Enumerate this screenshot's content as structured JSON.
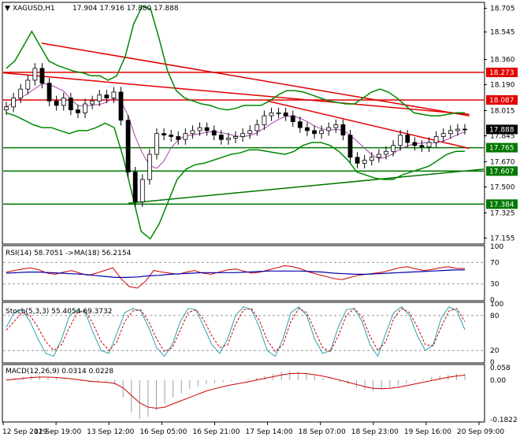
{
  "header": {
    "symbol": "XAGUSD,H1",
    "ohlc": "17.904 17.916 17.880 17.888"
  },
  "indicators": {
    "rsi_label": "RSI(14) 58.7051 ->MA(18) 56.2154",
    "stoch_label": "Stoch(5,3,3) 55.4054 69.3732",
    "macd_label": "MACD(12,26,9) 0.0314 0.0228"
  },
  "colors": {
    "up_candle": "#ffffff",
    "down_candle": "#000000",
    "resistance": "#e00000",
    "support": "#007700",
    "bollinger": "#008800",
    "rsi_line": "#cc0000",
    "rsi_ma": "#0000aa",
    "stoch_main": "#2aa0b0",
    "stoch_signal": "#cc0000",
    "macd_hist": "#a0a0a0",
    "macd_signal": "#cc0000"
  },
  "chart_data": [
    {
      "type": "candlestick",
      "title": "XAGUSD,H1",
      "y_ticks": [
        "18.705",
        "18.545",
        "18.360",
        "18.190",
        "18.015",
        "17.845",
        "17.670",
        "17.500",
        "17.325",
        "17.155"
      ],
      "y_tick_values": [
        18.705,
        18.545,
        18.36,
        18.19,
        18.015,
        17.845,
        17.67,
        17.5,
        17.325,
        17.155
      ],
      "ylim": [
        17.12,
        18.74
      ],
      "x_ticks": [
        "12 Sep 2019",
        "12 Sep 19:00",
        "13 Sep 12:00",
        "16 Sep 05:00",
        "16 Sep 21:00",
        "17 Sep 14:00",
        "18 Sep 07:00",
        "18 Sep 23:00",
        "19 Sep 16:00",
        "20 Sep 09:00"
      ],
      "current_price": "17.888",
      "horizontal_levels": [
        {
          "value": 18.273,
          "label": "18.273",
          "color": "red"
        },
        {
          "value": 18.087,
          "label": "18.087",
          "color": "red"
        },
        {
          "value": 17.765,
          "label": "17.765",
          "color": "green"
        },
        {
          "value": 17.607,
          "label": "17.607",
          "color": "green"
        },
        {
          "value": 17.384,
          "label": "17.384",
          "color": "green"
        }
      ],
      "trend_lines": [
        {
          "color": "red",
          "from": [
            0.08,
            18.47
          ],
          "to": [
            0.97,
            17.98
          ]
        },
        {
          "color": "red",
          "from": [
            0.0,
            18.27
          ],
          "to": [
            0.97,
            17.99
          ]
        },
        {
          "color": "red",
          "from": [
            0.55,
            18.08
          ],
          "to": [
            0.97,
            17.76
          ]
        },
        {
          "color": "green",
          "from": [
            0.26,
            17.39
          ],
          "to": [
            1.0,
            17.62
          ]
        }
      ],
      "close": [
        18.04,
        18.1,
        18.16,
        18.22,
        18.3,
        18.2,
        18.08,
        18.05,
        18.1,
        18.02,
        18.0,
        18.06,
        18.08,
        18.12,
        18.1,
        18.14,
        17.95,
        17.6,
        17.4,
        17.55,
        17.72,
        17.86,
        17.85,
        17.84,
        17.82,
        17.86,
        17.88,
        17.9,
        17.88,
        17.85,
        17.82,
        17.83,
        17.84,
        17.86,
        17.88,
        17.92,
        17.98,
        18.0,
        18.0,
        17.98,
        17.94,
        17.9,
        17.88,
        17.86,
        17.88,
        17.9,
        17.92,
        17.85,
        17.7,
        17.66,
        17.68,
        17.7,
        17.72,
        17.74,
        17.78,
        17.85,
        17.8,
        17.78,
        17.77,
        17.8,
        17.84,
        17.86,
        17.88,
        17.89,
        17.888
      ],
      "bollinger_upper": [
        18.3,
        18.35,
        18.45,
        18.55,
        18.45,
        18.35,
        18.32,
        18.3,
        18.28,
        18.27,
        18.25,
        18.25,
        18.22,
        18.25,
        18.38,
        18.6,
        18.72,
        18.7,
        18.5,
        18.28,
        18.15,
        18.1,
        18.08,
        18.06,
        18.05,
        18.03,
        18.02,
        18.03,
        18.05,
        18.05,
        18.05,
        18.08,
        18.12,
        18.15,
        18.15,
        18.14,
        18.12,
        18.1,
        18.08,
        18.07,
        18.06,
        18.06,
        18.1,
        18.14,
        18.16,
        18.14,
        18.1,
        18.05,
        18.0,
        17.99,
        17.98,
        17.98,
        17.99,
        18.0,
        18.0
      ],
      "bollinger_lower": [
        18.0,
        17.98,
        17.95,
        17.92,
        17.9,
        17.9,
        17.88,
        17.86,
        17.88,
        17.88,
        17.9,
        17.93,
        17.9,
        17.7,
        17.45,
        17.2,
        17.15,
        17.25,
        17.4,
        17.55,
        17.62,
        17.65,
        17.66,
        17.68,
        17.7,
        17.72,
        17.73,
        17.75,
        17.75,
        17.74,
        17.73,
        17.72,
        17.74,
        17.78,
        17.8,
        17.8,
        17.78,
        17.74,
        17.68,
        17.6,
        17.58,
        17.56,
        17.55,
        17.55,
        17.58,
        17.6,
        17.62,
        17.64,
        17.68,
        17.72,
        17.74,
        17.74
      ]
    },
    {
      "type": "line",
      "title": "RSI(14)",
      "y_ticks": [
        "100",
        "70",
        "30",
        "0"
      ],
      "ylim": [
        0,
        100
      ],
      "series": [
        {
          "values": [
            52,
            55,
            58,
            60,
            56,
            50,
            48,
            52,
            55,
            50,
            46,
            50,
            55,
            60,
            40,
            25,
            22,
            35,
            55,
            52,
            50,
            48,
            52,
            55,
            50,
            48,
            52,
            56,
            58,
            54,
            50,
            52,
            56,
            60,
            64,
            62,
            58,
            52,
            48,
            44,
            40,
            38,
            42,
            46,
            48,
            50,
            52,
            56,
            60,
            62,
            58,
            55,
            57,
            60,
            62,
            59,
            58.7
          ]
        },
        {
          "values": [
            50,
            51,
            52,
            52,
            51,
            50,
            49,
            48,
            46,
            44,
            42,
            42,
            43,
            45,
            46,
            48,
            49,
            50,
            51,
            51,
            51,
            51,
            52,
            53,
            54,
            54,
            54,
            54,
            53,
            52,
            50,
            49,
            48,
            48,
            49,
            50,
            51,
            52,
            53,
            54,
            55,
            56,
            56.2
          ]
        }
      ]
    },
    {
      "type": "line",
      "title": "Stoch(5,3,3)",
      "y_ticks": [
        "100",
        "80",
        "20",
        "0"
      ],
      "ylim": [
        0,
        100
      ],
      "series": [
        {
          "values": [
            60,
            85,
            90,
            70,
            40,
            15,
            10,
            40,
            80,
            90,
            85,
            50,
            20,
            15,
            50,
            85,
            92,
            88,
            60,
            25,
            10,
            30,
            70,
            92,
            90,
            60,
            30,
            15,
            40,
            80,
            95,
            90,
            60,
            20,
            10,
            40,
            85,
            95,
            80,
            40,
            15,
            20,
            60,
            90,
            92,
            70,
            30,
            10,
            50,
            85,
            95,
            80,
            45,
            20,
            30,
            75,
            95,
            88,
            55.4
          ]
        },
        {
          "values": [
            55,
            70,
            85,
            80,
            60,
            35,
            20,
            30,
            60,
            85,
            88,
            65,
            35,
            20,
            35,
            70,
            88,
            90,
            70,
            40,
            18,
            25,
            55,
            85,
            90,
            72,
            45,
            25,
            30,
            65,
            90,
            92,
            72,
            38,
            18,
            30,
            70,
            92,
            85,
            55,
            25,
            18,
            45,
            80,
            92,
            78,
            45,
            20,
            35,
            75,
            92,
            85,
            60,
            30,
            28,
            60,
            88,
            92,
            69.4
          ]
        }
      ]
    },
    {
      "type": "bar",
      "title": "MACD(12,26,9)",
      "y_ticks": [
        "0.058",
        "0.00",
        "-0.1822"
      ],
      "ylim": [
        -0.19,
        0.065
      ],
      "histogram": [
        0.005,
        0.01,
        0.015,
        0.02,
        0.02,
        0.015,
        0.01,
        0.005,
        0.0,
        -0.005,
        -0.01,
        -0.01,
        -0.005,
        -0.02,
        -0.08,
        -0.15,
        -0.18,
        -0.17,
        -0.14,
        -0.11,
        -0.08,
        -0.06,
        -0.04,
        -0.03,
        -0.02,
        -0.015,
        -0.01,
        -0.005,
        0.0,
        0.005,
        0.01,
        0.02,
        0.03,
        0.04,
        0.045,
        0.04,
        0.03,
        0.02,
        0.01,
        0.0,
        -0.01,
        -0.02,
        -0.035,
        -0.045,
        -0.05,
        -0.045,
        -0.035,
        -0.025,
        -0.015,
        -0.005,
        0.005,
        0.015,
        0.02,
        0.025,
        0.03,
        0.031
      ],
      "signal": [
        0.0,
        0.004,
        0.008,
        0.012,
        0.014,
        0.014,
        0.012,
        0.009,
        0.005,
        0.0,
        -0.005,
        -0.008,
        -0.01,
        -0.015,
        -0.035,
        -0.07,
        -0.105,
        -0.125,
        -0.13,
        -0.125,
        -0.11,
        -0.095,
        -0.08,
        -0.065,
        -0.05,
        -0.04,
        -0.03,
        -0.022,
        -0.015,
        -0.008,
        0.0,
        0.008,
        0.016,
        0.024,
        0.03,
        0.032,
        0.03,
        0.025,
        0.018,
        0.01,
        0.0,
        -0.01,
        -0.02,
        -0.03,
        -0.038,
        -0.04,
        -0.038,
        -0.033,
        -0.026,
        -0.018,
        -0.01,
        -0.002,
        0.006,
        0.013,
        0.019,
        0.023
      ]
    }
  ]
}
